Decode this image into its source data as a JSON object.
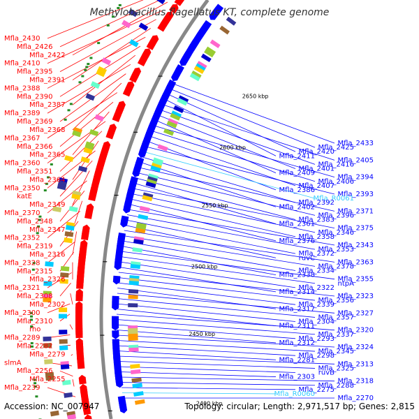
{
  "header": {
    "title": "Methylobacillus flagellatus KT, complete genome"
  },
  "footer": {
    "accession": "Accession: NC_007947",
    "summary": "Topology: circular; Length: 2,971,517 bp; Genes: 2,815"
  },
  "colors": {
    "forward_strand": "#ff0000",
    "reverse_strand": "#0000ff",
    "rna": "#33ccff",
    "backbone": "#888888",
    "marker": "#228b22"
  },
  "ticks": [
    "2650 kbp",
    "2600 kbp",
    "2550 kbp",
    "2500 kbp",
    "2450 kbp",
    "2400 kbp"
  ],
  "labels_left": [
    "Mfla_2430",
    "Mfla_2426",
    "Mfla_2422",
    "Mfla_2410",
    "Mfla_2395",
    "Mfla_2391",
    "Mfla_2388",
    "Mfla_2390",
    "Mfla_2387",
    "Mfla_2389",
    "Mfla_2369",
    "Mfla_2368",
    "Mfla_2367",
    "Mfla_2366",
    "Mfla_2365",
    "Mfla_2360",
    "Mfla_2351",
    "Mfla_2364",
    "Mfla_2350",
    "katE",
    "Mfla_2349",
    "Mfla_2370",
    "Mfla_2348",
    "Mfla_2347",
    "Mfla_2352",
    "Mfla_2319",
    "Mfla_2316",
    "Mfla_2328",
    "Mfla_2315",
    "Mfla_2326",
    "Mfla_2321",
    "Mfla_2308",
    "Mfla_2302",
    "Mfla_2300",
    "Mfla_2310",
    "rho",
    "Mfla_2289",
    "Mfla_2282",
    "Mfla_2279",
    "slmA",
    "Mfla_2256",
    "Mfla_2255",
    "Mfla_2239"
  ],
  "labels_right": [
    "Mfla_2433",
    "Mfla_2425",
    "Mfla_2420",
    "Mfla_2411",
    "Mfla_2405",
    "Mfla_2416",
    "Mfla_2401",
    "Mfla_2409",
    "Mfla_2394",
    "Mfla_2406",
    "Mfla_2407",
    "Mfla_2386",
    "Mfla_2393",
    "Mfla_R0061",
    "Mfla_2392",
    "Mfla_2402",
    "Mfla_2371",
    "Mfla_2396",
    "Mfla_2383",
    "Mfla_2361",
    "Mfla_2375",
    "Mfla_2346",
    "Mfla_2358",
    "Mfla_2376",
    "Mfla_2343",
    "Mfla_2353",
    "Mfla_2372",
    "ruvC",
    "Mfla_2363",
    "Mfla_2378",
    "Mfla_2334",
    "Mfla_2338",
    "Mfla_2355",
    "ntpA",
    "Mfla_2322",
    "Mfla_2314",
    "Mfla_2323",
    "Mfla_2356",
    "Mfla_2339",
    "Mfla_2317",
    "Mfla_2327",
    "Mfla_2357",
    "Mfla_2304",
    "Mfla_2311",
    "Mfla_2320",
    "Mfla_2337",
    "Mfla_2293",
    "Mfla_2312",
    "Mfla_2324",
    "Mfla_2345",
    "Mfla_2298",
    "Mfla_2281",
    "Mfla_2313",
    "Mfla_2325",
    "ruvB",
    "Mfla_2303",
    "Mfla_2318",
    "Mfla_2288",
    "Mfla_2275",
    "Mfla_R0060",
    "Mfla_2270"
  ]
}
